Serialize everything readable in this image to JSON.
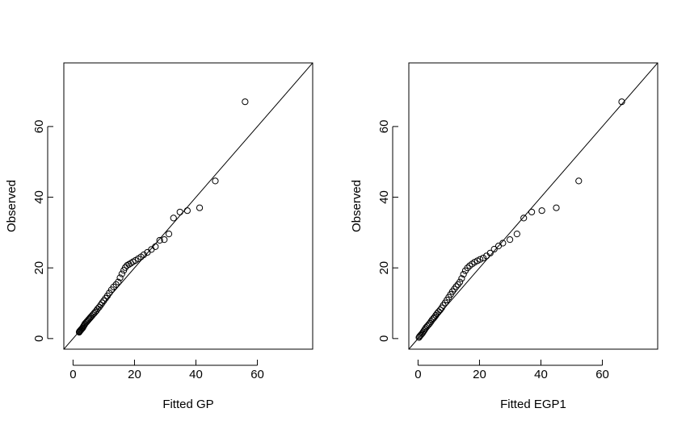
{
  "figure": {
    "description_labels": [
      "QQ plot",
      "QQ plot"
    ]
  },
  "chart_data": [
    {
      "type": "scatter",
      "title": "",
      "xlabel": "Fitted GP",
      "ylabel": "Observed",
      "xlim": [
        -3,
        78
      ],
      "ylim": [
        -3,
        78
      ],
      "xticks": [
        0,
        20,
        40,
        60
      ],
      "yticks": [
        0,
        20,
        40,
        60
      ],
      "reference_line": "y = x",
      "points": {
        "x": [
          2.0,
          2.1,
          2.3,
          2.5,
          2.7,
          2.9,
          3.1,
          3.3,
          3.5,
          3.7,
          3.9,
          4.2,
          4.5,
          4.8,
          5.1,
          5.4,
          5.7,
          6.0,
          6.4,
          6.8,
          7.2,
          7.6,
          8.0,
          8.5,
          9.0,
          9.5,
          10.0,
          10.6,
          11.2,
          11.8,
          12.5,
          13.2,
          14.0,
          14.7,
          15.3,
          15.9,
          16.5,
          17.0,
          17.6,
          18.2,
          18.8,
          19.5,
          20.3,
          21.2,
          22.1,
          23.0,
          24.2,
          25.5,
          26.8,
          28.2,
          29.7,
          31.2,
          32.7,
          34.8,
          37.2,
          41.2,
          46.3,
          56.0
        ],
        "y": [
          1.8,
          2.0,
          2.2,
          2.4,
          2.6,
          2.8,
          3.0,
          3.3,
          3.6,
          3.9,
          4.2,
          4.5,
          4.8,
          5.1,
          5.4,
          5.7,
          6.0,
          6.3,
          6.7,
          7.1,
          7.5,
          7.9,
          8.4,
          8.9,
          9.5,
          10.1,
          10.7,
          11.4,
          12.1,
          12.9,
          13.8,
          14.6,
          15.3,
          16.0,
          17.2,
          18.3,
          19.3,
          20.1,
          20.7,
          21.0,
          21.3,
          21.7,
          22.1,
          22.6,
          23.1,
          23.7,
          24.4,
          25.2,
          26.0,
          27.8,
          28.0,
          29.6,
          34.1,
          35.8,
          36.2,
          37.0,
          44.6,
          67.0
        ]
      }
    },
    {
      "type": "scatter",
      "title": "",
      "xlabel": "Fitted EGP1",
      "ylabel": "Observed",
      "xlim": [
        -3,
        78
      ],
      "ylim": [
        -3,
        78
      ],
      "xticks": [
        0,
        20,
        40,
        60
      ],
      "yticks": [
        0,
        20,
        40,
        60
      ],
      "reference_line": "y = x",
      "points": {
        "x": [
          0.3,
          0.5,
          0.8,
          1.1,
          1.4,
          1.7,
          2.0,
          2.3,
          2.6,
          3.0,
          3.4,
          3.8,
          4.2,
          4.6,
          5.0,
          5.4,
          5.8,
          6.2,
          6.7,
          7.2,
          7.7,
          8.2,
          8.8,
          9.4,
          10.0,
          10.6,
          11.2,
          11.8,
          12.4,
          13.0,
          13.6,
          14.2,
          14.8,
          15.4,
          16.1,
          16.8,
          17.6,
          18.4,
          19.3,
          20.2,
          21.2,
          22.3,
          23.5,
          24.8,
          26.2,
          27.6,
          29.9,
          32.2,
          34.4,
          37.0,
          40.3,
          45.0,
          52.3,
          66.3
        ],
        "y": [
          0.3,
          0.6,
          0.9,
          1.2,
          1.5,
          1.9,
          2.3,
          2.7,
          3.1,
          3.5,
          3.9,
          4.3,
          4.8,
          5.3,
          5.7,
          6.1,
          6.6,
          7.1,
          7.6,
          8.1,
          8.7,
          9.4,
          10.1,
          10.9,
          11.7,
          12.5,
          13.3,
          14.0,
          14.7,
          15.3,
          16.0,
          17.0,
          18.2,
          19.2,
          20.0,
          20.6,
          21.1,
          21.6,
          22.0,
          22.4,
          22.8,
          23.4,
          24.2,
          25.3,
          26.2,
          27.0,
          28.0,
          29.6,
          34.1,
          35.8,
          36.2,
          37.0,
          44.6,
          67.0
        ]
      }
    }
  ]
}
